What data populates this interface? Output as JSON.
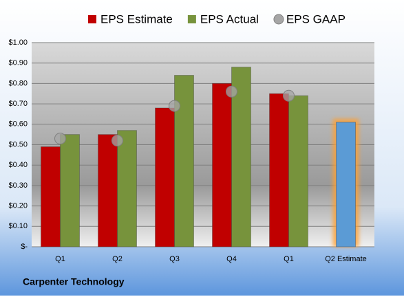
{
  "chart_data": {
    "type": "bar",
    "company": "Carpenter Technology",
    "categories": [
      "Q1",
      "Q2",
      "Q3",
      "Q4",
      "Q1",
      "Q2 Estimate"
    ],
    "series": [
      {
        "name": "EPS Estimate",
        "color": "#c00000",
        "point_colors": [
          "#c00000",
          "#c00000",
          "#c00000",
          "#c00000",
          "#c00000",
          "#5b9bd5"
        ],
        "values": [
          0.49,
          0.55,
          0.68,
          0.8,
          0.75,
          0.61
        ]
      },
      {
        "name": "EPS Actual",
        "color": "#77933c",
        "values": [
          0.55,
          0.57,
          0.84,
          0.88,
          0.74,
          null
        ]
      },
      {
        "name": "EPS GAAP",
        "color": "#a6a6a6",
        "mark": "circle",
        "values": [
          0.53,
          0.52,
          0.69,
          0.76,
          0.74,
          null
        ]
      }
    ],
    "ylim": [
      0,
      1
    ],
    "yticks": [
      {
        "value": 0,
        "label": "$-"
      },
      {
        "value": 0.1,
        "label": "$0.10"
      },
      {
        "value": 0.2,
        "label": "$0.20"
      },
      {
        "value": 0.3,
        "label": "$0.30"
      },
      {
        "value": 0.4,
        "label": "$0.40"
      },
      {
        "value": 0.5,
        "label": "$0.50"
      },
      {
        "value": 0.6,
        "label": "$0.60"
      },
      {
        "value": 0.7,
        "label": "$0.70"
      },
      {
        "value": 0.8,
        "label": "$0.80"
      },
      {
        "value": 0.9,
        "label": "$0.90"
      },
      {
        "value": 1,
        "label": "$1.00"
      }
    ],
    "grid": true
  }
}
